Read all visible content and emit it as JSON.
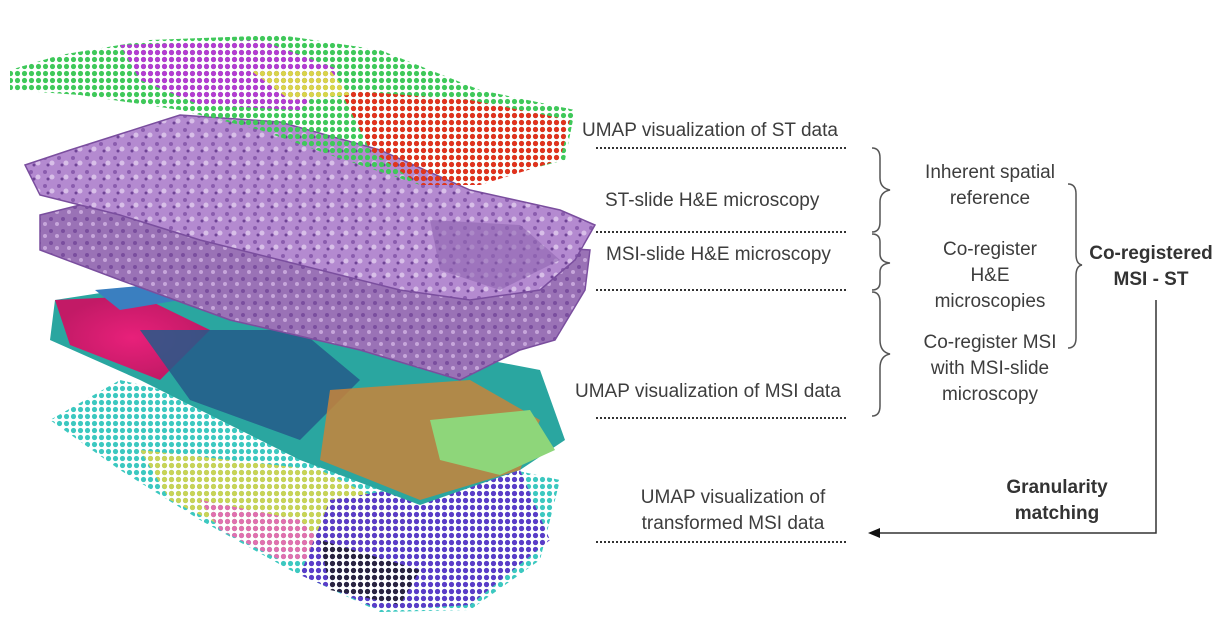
{
  "layers": {
    "umap_st": "UMAP visualization of ST data",
    "st_he": "ST-slide H&E microscopy",
    "msi_he": "MSI-slide H&E microscopy",
    "umap_msi": "UMAP visualization of MSI data",
    "umap_transformed": [
      "UMAP visualization of",
      "transformed MSI data"
    ]
  },
  "steps": {
    "inherent": [
      "Inherent spatial",
      "reference"
    ],
    "coreg_he": [
      "Co-register",
      "H&E",
      "microscopies"
    ],
    "coreg_msi": [
      "Co-register MSI",
      "with MSI-slide",
      "microscopy"
    ],
    "coregistered": [
      "Co-registered",
      "MSI - ST"
    ],
    "granularity": [
      "Granularity",
      "matching"
    ]
  },
  "colors": {
    "he_purple": "#9b6fb8",
    "he_light": "#c9a6dc",
    "msi_pink": "#e0206f",
    "msi_teal": "#2aa6a0",
    "msi_blue": "#245a8a",
    "msi_green": "#8ed67a",
    "msi_orange": "#c8843a",
    "st_green": "#5ad05a",
    "st_magenta": "#c040d0",
    "st_red": "#e03020",
    "line": "#333333"
  }
}
